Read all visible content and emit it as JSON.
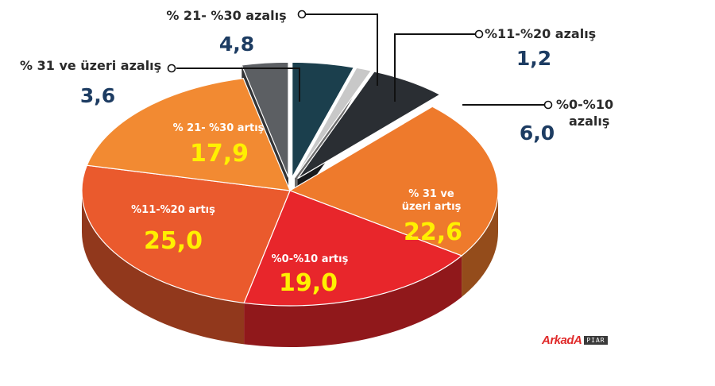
{
  "chart_data": {
    "type": "pie",
    "title": "",
    "slices": [
      {
        "label": "% 21- %30 azalış",
        "value": 4.8,
        "value_label": "4,8",
        "color": "#1b3f4d"
      },
      {
        "label": "%11-%20 azalış",
        "value": 1.2,
        "value_label": "1,2",
        "color": "#c8c8c8"
      },
      {
        "label": "%0-%10 azalış",
        "value": 6.0,
        "value_label": "6,0",
        "color": "#2a2e33"
      },
      {
        "label": "% 31 ve üzeri artış",
        "value": 22.6,
        "value_label": "22,6",
        "color": "#ee7a2c"
      },
      {
        "label": "%0-%10 artış",
        "value": 19.0,
        "value_label": "19,0",
        "color": "#e8262b"
      },
      {
        "label": "%11-%20 artış",
        "value": 25.0,
        "value_label": "25,0",
        "color": "#ea5a2d"
      },
      {
        "label": "% 21- %30 artış",
        "value": 17.9,
        "value_label": "17,9",
        "color": "#f28a32"
      },
      {
        "label": "% 31 ve üzeri azalış",
        "value": 3.6,
        "value_label": "3,6",
        "color": "#5c5f63"
      }
    ]
  },
  "labels": {
    "s0_cap": "% 21- %30 azalış",
    "s0_val": "4,8",
    "s1_cap": "%11-%20 azalış",
    "s1_val": "1,2",
    "s2_cap1": "%0-%10",
    "s2_cap2": "azalış",
    "s2_val": "6,0",
    "s3_cap1": "% 31 ve",
    "s3_cap2": "üzeri artış",
    "s3_val": "22,6",
    "s4_cap": "%0-%10 artış",
    "s4_val": "19,0",
    "s5_cap": "%11-%20 artış",
    "s5_val": "25,0",
    "s6_cap": "% 21- %30 artış",
    "s6_val": "17,9",
    "s7_cap": "% 31 ve üzeri azalış",
    "s7_val": "3,6"
  },
  "logo": {
    "brand": "ArkadA",
    "tag": "PIAR"
  }
}
